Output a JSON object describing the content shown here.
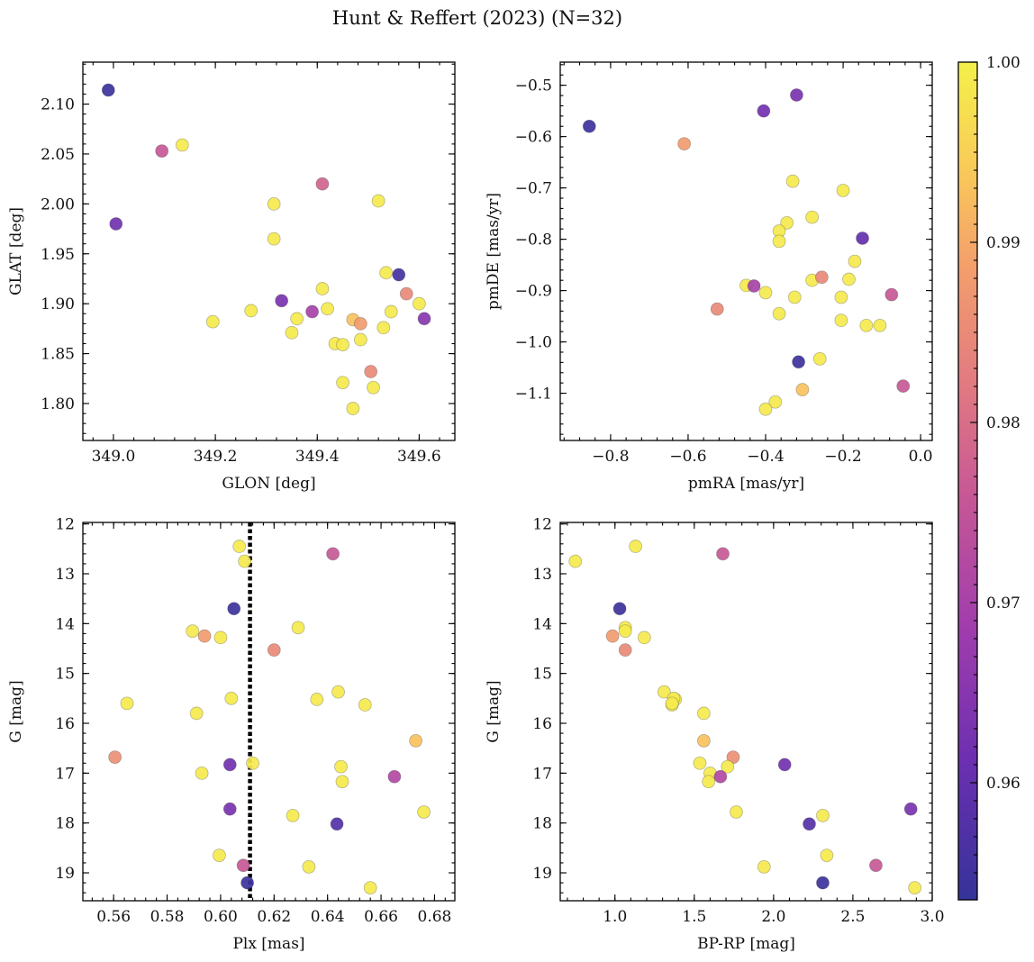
{
  "chart_data": {
    "title": "Hunt & Reffert (2023) (N=32)",
    "type": "scatter",
    "colorbar": {
      "min": 0.9535,
      "max": 1.0,
      "ticks": [
        "0.96",
        "0.97",
        "0.98",
        "0.99",
        "1.00"
      ],
      "colormap": "plasma"
    },
    "panels": [
      {
        "id": "glon-glat",
        "type": "scatter",
        "xlabel": "GLON [deg]",
        "ylabel": "GLAT [deg]",
        "xlim": [
          348.94,
          349.67
        ],
        "ylim": [
          1.763,
          2.142
        ],
        "xticks": [
          349.0,
          349.2,
          349.4,
          349.6
        ],
        "xtick_labels": [
          "349.0",
          "349.2",
          "349.4",
          "349.6"
        ],
        "yticks": [
          1.8,
          1.85,
          1.9,
          1.95,
          2.0,
          2.05,
          2.1
        ],
        "ytick_labels": [
          "1.80",
          "1.85",
          "1.90",
          "1.95",
          "2.00",
          "2.05",
          "2.10"
        ],
        "inverted_y": false,
        "points": [
          {
            "x": 348.99,
            "y": 2.114,
            "c": 0.9545
          },
          {
            "x": 349.095,
            "y": 2.053,
            "c": 0.976
          },
          {
            "x": 349.135,
            "y": 2.059,
            "c": 0.999
          },
          {
            "x": 349.005,
            "y": 1.98,
            "c": 0.962
          },
          {
            "x": 349.41,
            "y": 2.02,
            "c": 0.978
          },
          {
            "x": 349.52,
            "y": 2.003,
            "c": 0.999
          },
          {
            "x": 349.315,
            "y": 2.0,
            "c": 0.999
          },
          {
            "x": 349.315,
            "y": 1.965,
            "c": 0.999
          },
          {
            "x": 349.535,
            "y": 1.931,
            "c": 0.999
          },
          {
            "x": 349.56,
            "y": 1.929,
            "c": 0.956
          },
          {
            "x": 349.33,
            "y": 1.903,
            "c": 0.963
          },
          {
            "x": 349.41,
            "y": 1.915,
            "c": 0.999
          },
          {
            "x": 349.39,
            "y": 1.892,
            "c": 0.97
          },
          {
            "x": 349.42,
            "y": 1.895,
            "c": 0.999
          },
          {
            "x": 349.575,
            "y": 1.91,
            "c": 0.985
          },
          {
            "x": 349.6,
            "y": 1.9,
            "c": 0.999
          },
          {
            "x": 349.61,
            "y": 1.885,
            "c": 0.965
          },
          {
            "x": 349.195,
            "y": 1.882,
            "c": 0.999
          },
          {
            "x": 349.27,
            "y": 1.893,
            "c": 0.999
          },
          {
            "x": 349.36,
            "y": 1.885,
            "c": 0.999
          },
          {
            "x": 349.35,
            "y": 1.871,
            "c": 0.999
          },
          {
            "x": 349.47,
            "y": 1.884,
            "c": 0.993
          },
          {
            "x": 349.485,
            "y": 1.88,
            "c": 0.988
          },
          {
            "x": 349.545,
            "y": 1.892,
            "c": 0.999
          },
          {
            "x": 349.53,
            "y": 1.876,
            "c": 0.999
          },
          {
            "x": 349.435,
            "y": 1.86,
            "c": 0.999
          },
          {
            "x": 349.45,
            "y": 1.859,
            "c": 0.999
          },
          {
            "x": 349.485,
            "y": 1.864,
            "c": 0.999
          },
          {
            "x": 349.505,
            "y": 1.832,
            "c": 0.985
          },
          {
            "x": 349.45,
            "y": 1.821,
            "c": 0.999
          },
          {
            "x": 349.51,
            "y": 1.816,
            "c": 0.999
          },
          {
            "x": 349.47,
            "y": 1.795,
            "c": 0.999
          }
        ]
      },
      {
        "id": "pmra-pmde",
        "type": "scatter",
        "xlabel": "pmRA [mas/yr]",
        "ylabel": "pmDE [mas/yr]",
        "xlim": [
          -0.93,
          0.03
        ],
        "ylim": [
          -1.192,
          -0.455
        ],
        "xticks": [
          -0.8,
          -0.6,
          -0.4,
          -0.2,
          0.0
        ],
        "xtick_labels": [
          "−0.8",
          "−0.6",
          "−0.4",
          "−0.2",
          "0.0"
        ],
        "yticks": [
          -1.1,
          -1.0,
          -0.9,
          -0.8,
          -0.7,
          -0.6,
          -0.5
        ],
        "ytick_labels": [
          "−1.1",
          "−1.0",
          "−0.9",
          "−0.8",
          "−0.7",
          "−0.6",
          "−0.5"
        ],
        "inverted_y": false,
        "points": [
          {
            "x": -0.855,
            "y": -0.58,
            "c": 0.9545
          },
          {
            "x": -0.405,
            "y": -0.55,
            "c": 0.962
          },
          {
            "x": -0.32,
            "y": -0.519,
            "c": 0.963
          },
          {
            "x": -0.61,
            "y": -0.614,
            "c": 0.988
          },
          {
            "x": -0.33,
            "y": -0.687,
            "c": 0.999
          },
          {
            "x": -0.2,
            "y": -0.705,
            "c": 0.999
          },
          {
            "x": -0.28,
            "y": -0.757,
            "c": 0.999
          },
          {
            "x": -0.345,
            "y": -0.768,
            "c": 0.999
          },
          {
            "x": -0.365,
            "y": -0.784,
            "c": 0.999
          },
          {
            "x": -0.365,
            "y": -0.804,
            "c": 0.999
          },
          {
            "x": -0.15,
            "y": -0.798,
            "c": 0.96
          },
          {
            "x": -0.17,
            "y": -0.843,
            "c": 0.999
          },
          {
            "x": -0.185,
            "y": -0.878,
            "c": 0.999
          },
          {
            "x": -0.28,
            "y": -0.88,
            "c": 0.999
          },
          {
            "x": -0.255,
            "y": -0.874,
            "c": 0.985
          },
          {
            "x": -0.45,
            "y": -0.89,
            "c": 0.999
          },
          {
            "x": -0.43,
            "y": -0.891,
            "c": 0.97
          },
          {
            "x": -0.4,
            "y": -0.904,
            "c": 0.999
          },
          {
            "x": -0.325,
            "y": -0.913,
            "c": 0.999
          },
          {
            "x": -0.205,
            "y": -0.913,
            "c": 0.999
          },
          {
            "x": -0.075,
            "y": -0.908,
            "c": 0.976
          },
          {
            "x": -0.525,
            "y": -0.936,
            "c": 0.985
          },
          {
            "x": -0.365,
            "y": -0.945,
            "c": 0.999
          },
          {
            "x": -0.205,
            "y": -0.958,
            "c": 0.999
          },
          {
            "x": -0.14,
            "y": -0.968,
            "c": 0.999
          },
          {
            "x": -0.105,
            "y": -0.968,
            "c": 0.999
          },
          {
            "x": -0.26,
            "y": -1.033,
            "c": 0.999
          },
          {
            "x": -0.315,
            "y": -1.039,
            "c": 0.9545
          },
          {
            "x": -0.045,
            "y": -1.086,
            "c": 0.976
          },
          {
            "x": -0.305,
            "y": -1.093,
            "c": 0.993
          },
          {
            "x": -0.375,
            "y": -1.117,
            "c": 0.999
          },
          {
            "x": -0.4,
            "y": -1.131,
            "c": 0.999
          }
        ]
      },
      {
        "id": "plx-g",
        "type": "scatter",
        "xlabel": "Plx [mas]",
        "ylabel": "G [mag]",
        "xlim": [
          0.5485,
          0.6876
        ],
        "ylim": [
          19.56,
          11.97
        ],
        "xticks": [
          0.56,
          0.58,
          0.6,
          0.62,
          0.64,
          0.66,
          0.68
        ],
        "xtick_labels": [
          "0.56",
          "0.58",
          "0.60",
          "0.62",
          "0.64",
          "0.66",
          "0.68"
        ],
        "yticks": [
          12,
          13,
          14,
          15,
          16,
          17,
          18,
          19
        ],
        "ytick_labels": [
          "12",
          "13",
          "14",
          "15",
          "16",
          "17",
          "18",
          "19"
        ],
        "inverted_y": true,
        "vline": {
          "x": 0.611,
          "style": "dotted",
          "color": "#000000"
        },
        "points": [
          {
            "x": 0.607,
            "y": 12.45,
            "c": 0.999
          },
          {
            "x": 0.609,
            "y": 12.75,
            "c": 0.999
          },
          {
            "x": 0.642,
            "y": 12.6,
            "c": 0.976
          },
          {
            "x": 0.605,
            "y": 13.7,
            "c": 0.9545
          },
          {
            "x": 0.629,
            "y": 14.08,
            "c": 0.999
          },
          {
            "x": 0.5895,
            "y": 14.15,
            "c": 0.999
          },
          {
            "x": 0.594,
            "y": 14.25,
            "c": 0.988
          },
          {
            "x": 0.6,
            "y": 14.28,
            "c": 0.999
          },
          {
            "x": 0.62,
            "y": 14.53,
            "c": 0.985
          },
          {
            "x": 0.644,
            "y": 15.37,
            "c": 0.999
          },
          {
            "x": 0.636,
            "y": 15.52,
            "c": 0.999
          },
          {
            "x": 0.604,
            "y": 15.5,
            "c": 0.999
          },
          {
            "x": 0.654,
            "y": 15.63,
            "c": 0.999
          },
          {
            "x": 0.565,
            "y": 15.6,
            "c": 0.999
          },
          {
            "x": 0.591,
            "y": 15.8,
            "c": 0.999
          },
          {
            "x": 0.673,
            "y": 16.35,
            "c": 0.993
          },
          {
            "x": 0.5605,
            "y": 16.68,
            "c": 0.986
          },
          {
            "x": 0.612,
            "y": 16.8,
            "c": 0.999
          },
          {
            "x": 0.6035,
            "y": 16.83,
            "c": 0.962
          },
          {
            "x": 0.645,
            "y": 16.87,
            "c": 0.999
          },
          {
            "x": 0.593,
            "y": 17.0,
            "c": 0.999
          },
          {
            "x": 0.665,
            "y": 17.07,
            "c": 0.972
          },
          {
            "x": 0.6455,
            "y": 17.17,
            "c": 0.999
          },
          {
            "x": 0.6035,
            "y": 17.72,
            "c": 0.963
          },
          {
            "x": 0.676,
            "y": 17.78,
            "c": 0.999
          },
          {
            "x": 0.627,
            "y": 17.85,
            "c": 0.999
          },
          {
            "x": 0.6435,
            "y": 18.02,
            "c": 0.958
          },
          {
            "x": 0.5995,
            "y": 18.65,
            "c": 0.999
          },
          {
            "x": 0.633,
            "y": 18.88,
            "c": 0.999
          },
          {
            "x": 0.6085,
            "y": 18.85,
            "c": 0.976
          },
          {
            "x": 0.61,
            "y": 19.2,
            "c": 0.9545
          },
          {
            "x": 0.656,
            "y": 19.3,
            "c": 0.999
          }
        ]
      },
      {
        "id": "bprp-g",
        "type": "scatter",
        "xlabel": "BP-RP [mag]",
        "ylabel": "G [mag]",
        "xlim": [
          0.655,
          3.0
        ],
        "ylim": [
          19.56,
          11.97
        ],
        "xticks": [
          1.0,
          1.5,
          2.0,
          2.5,
          3.0
        ],
        "xtick_labels": [
          "1.0",
          "1.5",
          "2.0",
          "2.5",
          "3.0"
        ],
        "yticks": [
          12,
          13,
          14,
          15,
          16,
          17,
          18,
          19
        ],
        "ytick_labels": [
          "12",
          "13",
          "14",
          "15",
          "16",
          "17",
          "18",
          "19"
        ],
        "inverted_y": true,
        "points": [
          {
            "x": 1.13,
            "y": 12.45,
            "c": 0.999
          },
          {
            "x": 0.75,
            "y": 12.75,
            "c": 0.999
          },
          {
            "x": 1.68,
            "y": 12.6,
            "c": 0.976
          },
          {
            "x": 1.03,
            "y": 13.7,
            "c": 0.9545
          },
          {
            "x": 1.065,
            "y": 14.08,
            "c": 0.999
          },
          {
            "x": 1.065,
            "y": 14.15,
            "c": 0.999
          },
          {
            "x": 0.985,
            "y": 14.25,
            "c": 0.988
          },
          {
            "x": 1.185,
            "y": 14.28,
            "c": 0.999
          },
          {
            "x": 1.065,
            "y": 14.53,
            "c": 0.985
          },
          {
            "x": 1.31,
            "y": 15.37,
            "c": 0.999
          },
          {
            "x": 1.38,
            "y": 15.52,
            "c": 0.999
          },
          {
            "x": 1.37,
            "y": 15.5,
            "c": 0.999
          },
          {
            "x": 1.36,
            "y": 15.63,
            "c": 0.999
          },
          {
            "x": 1.36,
            "y": 15.6,
            "c": 0.999
          },
          {
            "x": 1.56,
            "y": 15.8,
            "c": 0.999
          },
          {
            "x": 1.56,
            "y": 16.35,
            "c": 0.993
          },
          {
            "x": 1.745,
            "y": 16.68,
            "c": 0.986
          },
          {
            "x": 1.535,
            "y": 16.8,
            "c": 0.999
          },
          {
            "x": 2.07,
            "y": 16.83,
            "c": 0.962
          },
          {
            "x": 1.71,
            "y": 16.87,
            "c": 0.999
          },
          {
            "x": 1.6,
            "y": 17.0,
            "c": 0.999
          },
          {
            "x": 1.665,
            "y": 17.07,
            "c": 0.972
          },
          {
            "x": 1.59,
            "y": 17.17,
            "c": 0.999
          },
          {
            "x": 2.865,
            "y": 17.72,
            "c": 0.963
          },
          {
            "x": 1.765,
            "y": 17.78,
            "c": 0.999
          },
          {
            "x": 2.31,
            "y": 17.85,
            "c": 0.999
          },
          {
            "x": 2.225,
            "y": 18.02,
            "c": 0.958
          },
          {
            "x": 2.335,
            "y": 18.65,
            "c": 0.999
          },
          {
            "x": 1.94,
            "y": 18.88,
            "c": 0.999
          },
          {
            "x": 2.645,
            "y": 18.85,
            "c": 0.976
          },
          {
            "x": 2.31,
            "y": 19.2,
            "c": 0.9545
          },
          {
            "x": 2.89,
            "y": 19.3,
            "c": 0.999
          }
        ]
      }
    ]
  }
}
